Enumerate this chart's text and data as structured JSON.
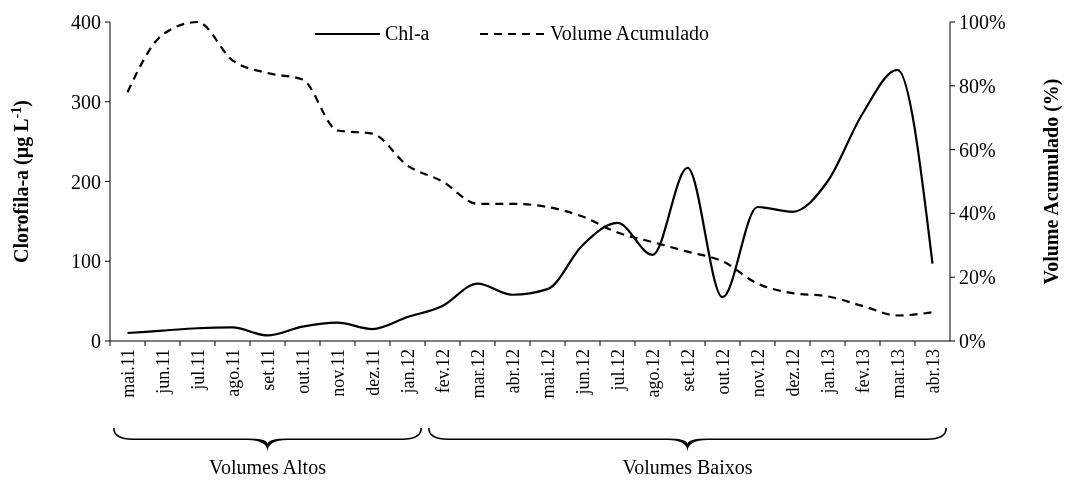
{
  "chart_data": {
    "type": "line",
    "ylabel": "Clorofila-a (µg L$^{-1}$)",
    "y2label": "Volume Acumulado (%)",
    "categories": [
      "mai.11",
      "jun.11",
      "jul.11",
      "ago.11",
      "set.11",
      "out.11",
      "nov.11",
      "dez.11",
      "jan.12",
      "fev.12",
      "mar.12",
      "abr.12",
      "mai.12",
      "jun.12",
      "jul.12",
      "ago.12",
      "set.12",
      "out.12",
      "nov.12",
      "dez.12",
      "jan.13",
      "fev.13",
      "mar.13",
      "abr.13"
    ],
    "series": [
      {
        "name": "Chl-a",
        "color": "#000000",
        "line_style": "solid",
        "values": [
          10,
          13,
          16,
          17,
          7,
          18,
          23,
          15,
          30,
          44,
          72,
          58,
          65,
          120,
          148,
          108,
          217,
          55,
          168,
          162,
          200,
          285,
          340,
          97
        ]
      },
      {
        "name": "Volume Acumulado",
        "color": "#000000",
        "line_style": "dashed",
        "axis": "y2",
        "values": [
          78,
          96,
          100,
          88,
          84,
          82,
          66,
          65,
          55,
          50,
          43,
          43,
          42,
          39,
          34,
          31,
          28,
          25,
          18,
          15,
          14,
          11,
          8,
          9
        ]
      }
    ],
    "ylim": [
      0,
      400
    ],
    "yticks": [
      0,
      100,
      200,
      300,
      400
    ],
    "y2lim": [
      0,
      100
    ],
    "y2ticks": [
      {
        "value": 0,
        "label": "0%"
      },
      {
        "value": 20,
        "label": "20%"
      },
      {
        "value": 40,
        "label": "40%"
      },
      {
        "value": 60,
        "label": "60%"
      },
      {
        "value": 80,
        "label": "80%"
      },
      {
        "value": 100,
        "label": "100%"
      }
    ],
    "legend": "top",
    "grid": false,
    "marker": "none",
    "annotations": [
      "Volumes Altos",
      "Volumes Baixos"
    ]
  }
}
